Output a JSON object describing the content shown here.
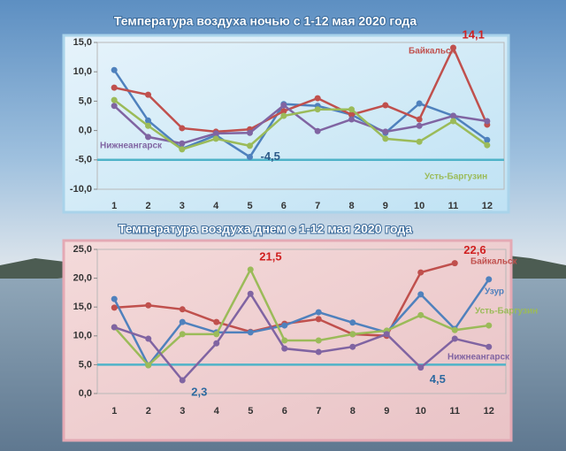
{
  "chart_data": [
    {
      "type": "line",
      "title": "Температура воздуха ночью с 1-12 мая 2020 года",
      "categories": [
        "1",
        "2",
        "3",
        "4",
        "5",
        "6",
        "7",
        "8",
        "9",
        "10",
        "11",
        "12"
      ],
      "ylim": [
        -10,
        15
      ],
      "yticks": [
        {
          "value": -10,
          "label": "-10,0"
        },
        {
          "value": -5,
          "label": "-5,0"
        },
        {
          "value": 0,
          "label": "0,0"
        },
        {
          "value": 5,
          "label": "5,0"
        },
        {
          "value": 10,
          "label": "10,0"
        },
        {
          "value": 15,
          "label": "15,0"
        }
      ],
      "reference_line": -5,
      "series": [
        {
          "color": "#4f81bd",
          "values": [
            10.3,
            1.7,
            -3.1,
            -0.8,
            -4.5,
            4.5,
            4.2,
            2.7,
            -0.4,
            4.6,
            2.5,
            -1.6
          ],
          "value_labels": [
            null,
            null,
            null,
            null,
            "-4,5",
            null,
            null,
            null,
            null,
            null,
            null,
            null
          ]
        },
        {
          "name": "Байкальск",
          "color": "#c0504d",
          "values": [
            7.3,
            6.1,
            0.4,
            -0.2,
            0.2,
            3.3,
            5.5,
            2.7,
            4.3,
            1.9,
            14.1,
            1.0
          ],
          "value_labels": [
            null,
            null,
            null,
            null,
            null,
            null,
            null,
            null,
            null,
            null,
            "14,1",
            null
          ]
        },
        {
          "name": "Нижнеангарск",
          "color": "#8064a2",
          "values": [
            4.2,
            -1.1,
            -2.2,
            -0.5,
            -0.4,
            4.3,
            -0.1,
            1.9,
            -0.2,
            0.8,
            2.5,
            1.6
          ]
        },
        {
          "name": "Усть-Баргузин",
          "color": "#9bbb59",
          "values": [
            5.2,
            0.8,
            -3.2,
            -1.4,
            -2.6,
            2.5,
            3.6,
            3.6,
            -1.4,
            -1.9,
            1.6,
            -2.5
          ]
        }
      ]
    },
    {
      "type": "line",
      "title": "Температура воздуха днем с 1-12 мая 2020 года",
      "categories": [
        "1",
        "2",
        "3",
        "4",
        "5",
        "6",
        "7",
        "8",
        "9",
        "10",
        "11",
        "12"
      ],
      "ylim": [
        0,
        25
      ],
      "yticks": [
        {
          "value": 0,
          "label": "0,0"
        },
        {
          "value": 5,
          "label": "5,0"
        },
        {
          "value": 10,
          "label": "10,0"
        },
        {
          "value": 15,
          "label": "15,0"
        },
        {
          "value": 20,
          "label": "20,0"
        },
        {
          "value": 25,
          "label": "25,0"
        }
      ],
      "reference_line": 5,
      "series": [
        {
          "name": "Байкальск",
          "color": "#c0504d",
          "values": [
            14.9,
            15.3,
            14.6,
            12.4,
            10.7,
            12.1,
            12.9,
            10.3,
            10.0,
            21.0,
            22.6,
            null
          ],
          "value_labels": [
            null,
            null,
            null,
            null,
            null,
            null,
            null,
            null,
            null,
            null,
            "22,6",
            null
          ]
        },
        {
          "name": "Узур",
          "color": "#4f81bd",
          "values": [
            16.4,
            4.9,
            12.4,
            10.6,
            10.6,
            11.8,
            14.1,
            12.3,
            10.6,
            17.2,
            11.2,
            19.8
          ]
        },
        {
          "name": "Усть-Баргузин",
          "color": "#9bbb59",
          "values": [
            11.5,
            4.9,
            10.3,
            10.3,
            21.5,
            9.2,
            9.2,
            10.3,
            10.9,
            13.6,
            11.0,
            11.8
          ],
          "value_labels": [
            null,
            null,
            null,
            null,
            "21,5",
            null,
            null,
            null,
            null,
            null,
            null,
            null
          ]
        },
        {
          "name": "Нижнеангарск",
          "color": "#8064a2",
          "values": [
            11.5,
            9.5,
            2.3,
            8.7,
            17.3,
            7.8,
            7.2,
            8.1,
            10.3,
            4.5,
            9.5,
            8.1
          ],
          "value_labels": [
            null,
            null,
            "2,3",
            null,
            null,
            null,
            null,
            null,
            null,
            "4,5",
            null,
            null
          ]
        }
      ]
    }
  ]
}
